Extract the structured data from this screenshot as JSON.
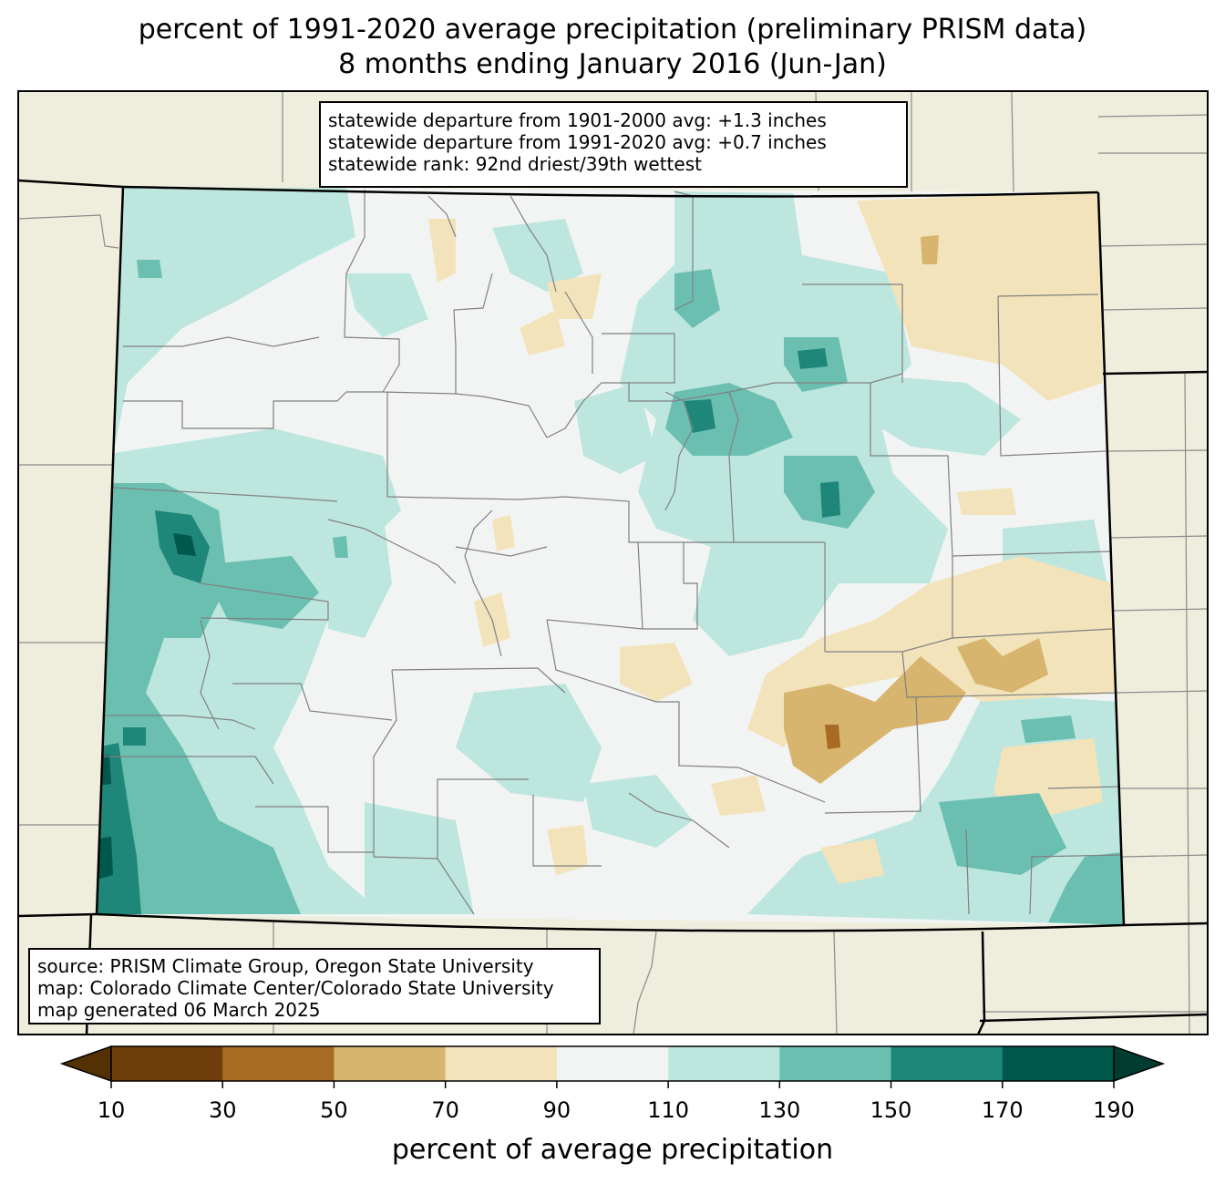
{
  "title": {
    "line1": "percent of 1991-2020 average precipitation (preliminary PRISM data)",
    "line2": "8 months ending January 2016 (Jun-Jan)"
  },
  "stats_box": {
    "line1": "statewide departure from 1901-2000 avg: +1.3 inches",
    "line2": "statewide departure from 1991-2020 avg: +0.7 inches",
    "line3": "statewide rank: 92nd driest/39th wettest"
  },
  "source_box": {
    "line1": "source: PRISM Climate Group, Oregon State University",
    "line2": "map: Colorado Climate Center/Colorado State University",
    "line3": "map generated 06 March 2025"
  },
  "colorbar": {
    "label": "percent of average precipitation",
    "ticks": [
      "10",
      "30",
      "50",
      "70",
      "90",
      "110",
      "130",
      "150",
      "170",
      "190"
    ],
    "under_color": "#543005",
    "over_color": "#003c30",
    "colors": [
      "#6f3d0b",
      "#a86b23",
      "#d7b56e",
      "#f2e3bb",
      "#f2f4f3",
      "#bde6df",
      "#6bbfb1",
      "#1f867a",
      "#00574c"
    ]
  },
  "map_colors": {
    "background_land": "#efeedd",
    "state_fill_base": "#f2f4f3",
    "county_lines": "#808080",
    "state_border": "#000000"
  }
}
